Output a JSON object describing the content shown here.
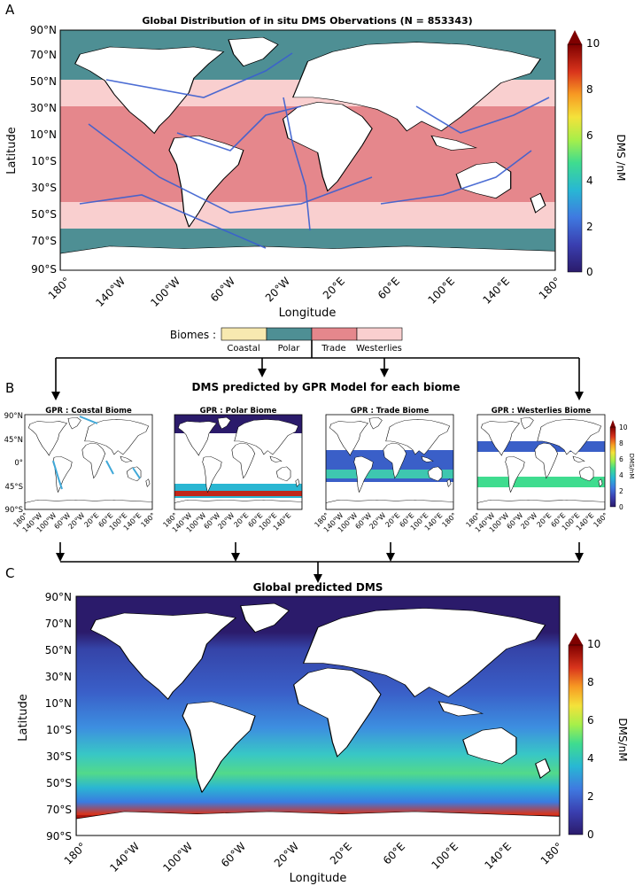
{
  "panelA": {
    "letter": "A",
    "title": "Global Distribution of in situ DMS Obervations (N = 853343)",
    "ylabel": "Latitude",
    "xlabel": "Longitude",
    "lat_ticks": [
      "90°N",
      "70°N",
      "50°N",
      "30°N",
      "10°N",
      "10°S",
      "30°S",
      "50°S",
      "70°S",
      "90°S"
    ],
    "lon_ticks": [
      "180°",
      "140°W",
      "100°W",
      "60°W",
      "20°W",
      "20°E",
      "60°E",
      "100°E",
      "140°E",
      "180°"
    ],
    "colorbar": {
      "label": "DMS /nM",
      "ticks": [
        "0",
        "2",
        "4",
        "6",
        "8",
        "10"
      ]
    }
  },
  "biome_legend": {
    "label": "Biomes :",
    "items": [
      {
        "name": "Coastal",
        "color": "#f7e9b0"
      },
      {
        "name": "Polar",
        "color": "#4e8f94"
      },
      {
        "name": "Trade",
        "color": "#e5878c"
      },
      {
        "name": "Westerlies",
        "color": "#f9cfcf"
      }
    ]
  },
  "panelB": {
    "letter": "B",
    "title": "DMS predicted by GPR Model for each biome",
    "maps": [
      {
        "title": "GPR : Coastal Biome"
      },
      {
        "title": "GPR : Polar Biome"
      },
      {
        "title": "GPR : Trade Biome"
      },
      {
        "title": "GPR : Westerlies Biome"
      }
    ],
    "lat_ticks": [
      "90°N",
      "45°N",
      "0°",
      "45°S",
      "90°S"
    ],
    "lon_ticks": [
      "180°",
      "140°W",
      "100°W",
      "60°W",
      "20°W",
      "20°E",
      "60°E",
      "100°E",
      "140°E",
      "180°"
    ],
    "colorbar": {
      "label": "DMS/nM",
      "ticks": [
        "0",
        "2",
        "4",
        "6",
        "8",
        "10"
      ]
    }
  },
  "panelC": {
    "letter": "C",
    "title": "Global predicted DMS",
    "ylabel": "Latitude",
    "xlabel": "Longitude",
    "lat_ticks": [
      "90°N",
      "70°N",
      "50°N",
      "30°N",
      "10°N",
      "10°S",
      "30°S",
      "50°S",
      "70°S",
      "90°S"
    ],
    "lon_ticks": [
      "180°",
      "140°W",
      "100°W",
      "60°W",
      "20°W",
      "20°E",
      "60°E",
      "100°E",
      "140°E",
      "180°"
    ],
    "colorbar": {
      "label": "DMS/nM",
      "ticks": [
        "0",
        "2",
        "4",
        "6",
        "8",
        "10"
      ]
    }
  },
  "colors": {
    "land": "#ffffff",
    "coastline": "#000000",
    "dms_low": "#2b1b6b",
    "dms_high": "#7f0000"
  }
}
